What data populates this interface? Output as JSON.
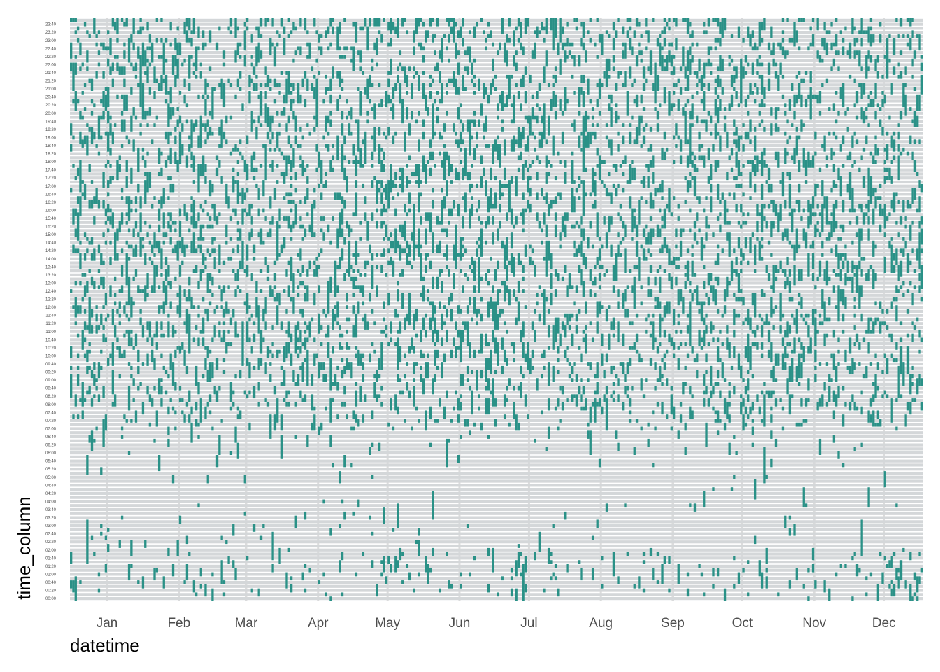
{
  "chart_data": {
    "type": "heatmap",
    "xlabel": "datetime",
    "ylabel": "time_column",
    "x_tick_labels": [
      "Jan",
      "Feb",
      "Mar",
      "Apr",
      "May",
      "Jun",
      "Jul",
      "Aug",
      "Sep",
      "Oct",
      "Nov",
      "Dec"
    ],
    "y_tick_labels": [
      "00:00",
      "00:20",
      "00:40",
      "01:00",
      "01:20",
      "01:40",
      "02:00",
      "02:20",
      "02:40",
      "03:00",
      "03:20",
      "03:40",
      "04:00",
      "04:20",
      "04:40",
      "05:00",
      "05:20",
      "05:40",
      "06:00",
      "06:20",
      "06:40",
      "07:00",
      "07:20",
      "07:40",
      "08:00",
      "08:20",
      "08:40",
      "09:00",
      "09:20",
      "09:40",
      "10:00",
      "10:20",
      "10:40",
      "11:00",
      "11:20",
      "11:40",
      "12:00",
      "12:20",
      "12:40",
      "13:00",
      "13:20",
      "13:40",
      "14:00",
      "14:20",
      "14:40",
      "15:00",
      "15:20",
      "15:40",
      "16:00",
      "16:20",
      "16:40",
      "17:00",
      "17:20",
      "17:40",
      "18:00",
      "18:20",
      "18:40",
      "19:00",
      "19:20",
      "19:40",
      "20:00",
      "20:20",
      "20:40",
      "21:00",
      "21:20",
      "21:40",
      "22:00",
      "22:20",
      "22:40",
      "23:00",
      "23:20",
      "23:40"
    ],
    "x_range": [
      "2023-12-16",
      "2024-12-18"
    ],
    "slot_minutes": 10,
    "grid": true,
    "legend": "none",
    "colors": {
      "filled": "#2a9187",
      "empty": "#d4d7d9",
      "background": "#ffffff",
      "grid": "#dcdcdc"
    }
  }
}
